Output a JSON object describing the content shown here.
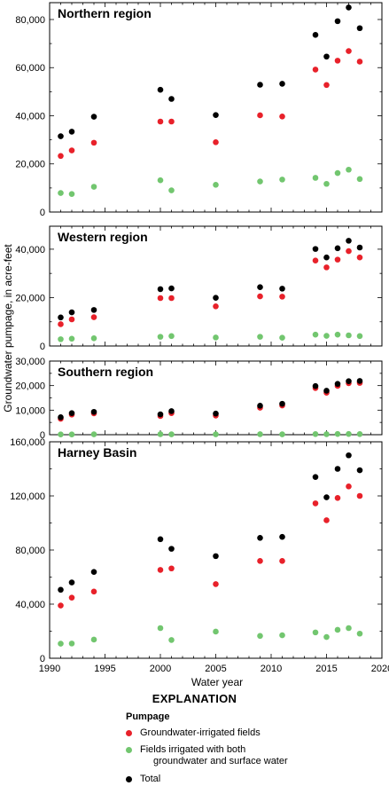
{
  "chart_data": {
    "type": "scatter",
    "xlabel": "Water year",
    "ylabel": "Groundwater pumpage, in acre-feet",
    "xlim": [
      1990,
      2020
    ],
    "x_ticks": [
      "1990",
      "1995",
      "2000",
      "2005",
      "2010",
      "2015",
      "2020"
    ],
    "colors": {
      "groundwater": "#e8212a",
      "both": "#72c66f",
      "total": "#000000"
    },
    "panels": [
      {
        "title": "Northern region",
        "ylim": [
          0,
          87000
        ],
        "y_ticks": [
          "0",
          "20,000",
          "40,000",
          "60,000",
          "80,000"
        ],
        "y_tick_values": [
          0,
          20000,
          40000,
          60000,
          80000
        ],
        "series": [
          {
            "name": "Total",
            "key": "total",
            "x": [
              1991,
              1992,
              1994,
              2000,
              2001,
              2005,
              2009,
              2011,
              2014,
              2015,
              2016,
              2017,
              2018
            ],
            "y": [
              31500,
              33400,
              39600,
              50800,
              47000,
              40300,
              52900,
              53300,
              73600,
              64600,
              79300,
              85000,
              76400
            ]
          },
          {
            "name": "Groundwater-irrigated fields",
            "key": "groundwater",
            "x": [
              1991,
              1992,
              1994,
              2000,
              2001,
              2005,
              2009,
              2011,
              2014,
              2015,
              2016,
              2017,
              2018
            ],
            "y": [
              23300,
              25600,
              28800,
              37600,
              37600,
              29000,
              40200,
              39700,
              59200,
              52800,
              62900,
              66900,
              62500
            ]
          },
          {
            "name": "Fields irrigated with both groundwater and surface water",
            "key": "both",
            "x": [
              1991,
              1992,
              1994,
              2000,
              2001,
              2005,
              2009,
              2011,
              2014,
              2015,
              2016,
              2017,
              2018
            ],
            "y": [
              7900,
              7500,
              10500,
              13200,
              9000,
              11300,
              12700,
              13500,
              14200,
              11700,
              16200,
              17600,
              13700
            ]
          }
        ]
      },
      {
        "title": "Western region",
        "ylim": [
          0,
          49500
        ],
        "y_ticks": [
          "0",
          "20,000",
          "40,000"
        ],
        "y_tick_values": [
          0,
          20000,
          40000
        ],
        "series": [
          {
            "name": "Total",
            "key": "total",
            "x": [
              1991,
              1992,
              1994,
              2000,
              2001,
              2005,
              2009,
              2011,
              2014,
              2015,
              2016,
              2017,
              2018
            ],
            "y": [
              11800,
              13900,
              14900,
              23500,
              23800,
              19900,
              24300,
              23700,
              40100,
              36600,
              40400,
              43500,
              40700
            ]
          },
          {
            "name": "Groundwater-irrigated fields",
            "key": "groundwater",
            "x": [
              1991,
              1992,
              1994,
              2000,
              2001,
              2005,
              2009,
              2011,
              2014,
              2015,
              2016,
              2017,
              2018
            ],
            "y": [
              9000,
              11000,
              11900,
              19800,
              19800,
              16400,
              20500,
              20400,
              35300,
              32500,
              35700,
              39200,
              36600
            ]
          },
          {
            "name": "Fields irrigated with both groundwater and surface water",
            "key": "both",
            "x": [
              1991,
              1992,
              1994,
              2000,
              2001,
              2005,
              2009,
              2011,
              2014,
              2015,
              2016,
              2017,
              2018
            ],
            "y": [
              2800,
              3000,
              3200,
              3800,
              4100,
              3500,
              3800,
              3400,
              4700,
              4200,
              4700,
              4400,
              4100
            ]
          }
        ]
      },
      {
        "title": "Southern region",
        "ylim": [
          0,
          30000
        ],
        "y_ticks": [
          "0",
          "10,000",
          "20,000",
          "30,000"
        ],
        "y_tick_values": [
          0,
          10000,
          20000,
          30000
        ],
        "series": [
          {
            "name": "Total",
            "key": "total",
            "x": [
              1991,
              1992,
              1994,
              2000,
              2001,
              2005,
              2009,
              2011,
              2014,
              2015,
              2016,
              2017,
              2018
            ],
            "y": [
              7100,
              8800,
              9300,
              8300,
              9600,
              8600,
              11800,
              12600,
              19800,
              17900,
              20700,
              21800,
              21900
            ]
          },
          {
            "name": "Groundwater-irrigated fields",
            "key": "groundwater",
            "x": [
              1991,
              1992,
              1994,
              2000,
              2001,
              2005,
              2009,
              2011,
              2014,
              2015,
              2016,
              2017,
              2018
            ],
            "y": [
              6500,
              8200,
              8700,
              7600,
              8800,
              7800,
              11000,
              11900,
              19000,
              17100,
              19900,
              21000,
              21100
            ]
          },
          {
            "name": "Fields irrigated with both groundwater and surface water",
            "key": "both",
            "x": [
              1991,
              1992,
              1994,
              2000,
              2001,
              2005,
              2009,
              2011,
              2014,
              2015,
              2016,
              2017,
              2018
            ],
            "y": [
              100,
              100,
              150,
              200,
              150,
              150,
              200,
              150,
              250,
              200,
              300,
              300,
              250
            ]
          }
        ]
      },
      {
        "title": "Harney Basin",
        "ylim": [
          0,
          160000
        ],
        "y_ticks": [
          "0",
          "40,000",
          "80,000",
          "120,000",
          "160,000"
        ],
        "y_tick_values": [
          0,
          40000,
          80000,
          120000,
          160000
        ],
        "series": [
          {
            "name": "Total",
            "key": "total",
            "x": [
              1991,
              1992,
              1994,
              2000,
              2001,
              2005,
              2009,
              2011,
              2014,
              2015,
              2016,
              2017,
              2018
            ],
            "y": [
              50600,
              56000,
              63800,
              88000,
              80900,
              75500,
              89000,
              89700,
              134000,
              119000,
              140000,
              150000,
              139000
            ]
          },
          {
            "name": "Groundwater-irrigated fields",
            "key": "groundwater",
            "x": [
              1991,
              1992,
              1994,
              2000,
              2001,
              2005,
              2009,
              2011,
              2014,
              2015,
              2016,
              2017,
              2018
            ],
            "y": [
              39000,
              44800,
              49300,
              65300,
              66400,
              54800,
              71900,
              71900,
              114500,
              102000,
              118500,
              127000,
              120000
            ]
          },
          {
            "name": "Fields irrigated with both groundwater and surface water",
            "key": "both",
            "x": [
              1991,
              1992,
              1994,
              2000,
              2001,
              2005,
              2009,
              2011,
              2014,
              2015,
              2016,
              2017,
              2018
            ],
            "y": [
              10800,
              10900,
              13800,
              22300,
              13500,
              19700,
              16500,
              17000,
              19100,
              15700,
              21000,
              22300,
              18200
            ]
          }
        ]
      }
    ]
  },
  "explanation": {
    "title": "EXPLANATION",
    "subtitle": "Pumpage",
    "items": [
      {
        "key": "groundwater",
        "label": "Groundwater-irrigated fields",
        "label2": ""
      },
      {
        "key": "both",
        "label": "Fields irrigated with both",
        "label2": "groundwater and surface water"
      },
      {
        "key": "total",
        "label": "Total",
        "label2": ""
      }
    ]
  }
}
